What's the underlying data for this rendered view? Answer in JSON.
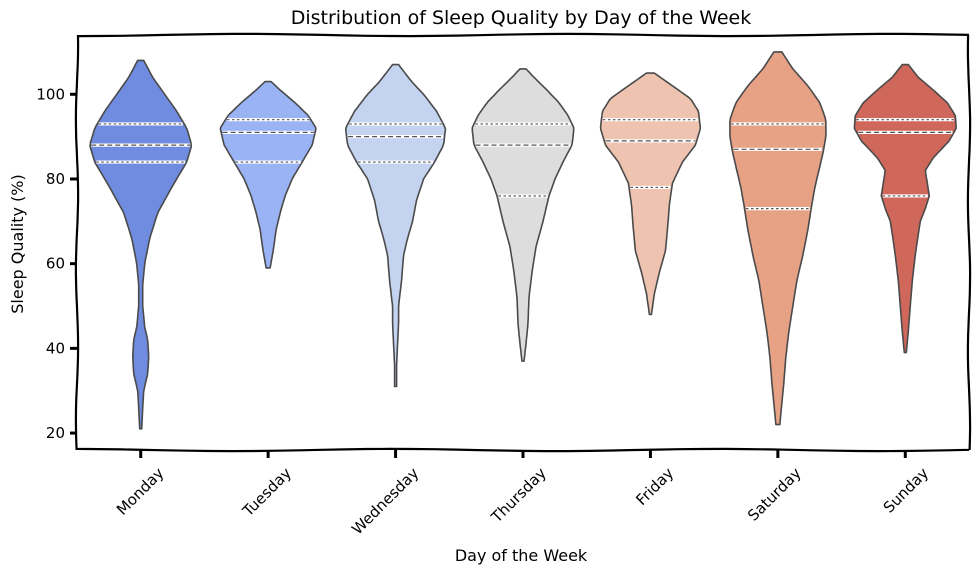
{
  "chart_data": {
    "type": "violin",
    "title": "Distribution of Sleep Quality by Day of the Week",
    "xlabel": "Day of the Week",
    "ylabel": "Sleep Quality (%)",
    "ylim": [
      16,
      114
    ],
    "yticks": [
      20,
      40,
      60,
      80,
      100
    ],
    "grid": false,
    "legend": "none",
    "categories": [
      "Monday",
      "Tuesday",
      "Wednesday",
      "Thursday",
      "Friday",
      "Saturday",
      "Sunday"
    ],
    "series": [
      {
        "name": "Monday",
        "color": "#6f8ce0",
        "min": 21,
        "max": 108,
        "quartiles": [
          84,
          88,
          93
        ],
        "profile": [
          [
            21,
            1
          ],
          [
            26,
            2
          ],
          [
            30,
            3
          ],
          [
            34,
            7
          ],
          [
            38,
            8
          ],
          [
            42,
            7
          ],
          [
            45,
            4
          ],
          [
            50,
            2
          ],
          [
            55,
            2
          ],
          [
            60,
            4
          ],
          [
            66,
            9
          ],
          [
            72,
            17
          ],
          [
            78,
            31
          ],
          [
            84,
            46
          ],
          [
            88,
            51
          ],
          [
            92,
            46
          ],
          [
            96,
            36
          ],
          [
            100,
            24
          ],
          [
            104,
            12
          ],
          [
            108,
            3
          ]
        ]
      },
      {
        "name": "Tuesday",
        "color": "#9ab3f5",
        "min": 59,
        "max": 103,
        "quartiles": [
          84,
          91,
          94
        ],
        "profile": [
          [
            59,
            2
          ],
          [
            63,
            5
          ],
          [
            68,
            8
          ],
          [
            72,
            12
          ],
          [
            76,
            17
          ],
          [
            80,
            24
          ],
          [
            84,
            34
          ],
          [
            88,
            44
          ],
          [
            92,
            48
          ],
          [
            95,
            40
          ],
          [
            98,
            27
          ],
          [
            101,
            12
          ],
          [
            103,
            3
          ]
        ]
      },
      {
        "name": "Wednesday",
        "color": "#c3d3f0",
        "min": 31,
        "max": 107,
        "quartiles": [
          84,
          90,
          93
        ],
        "profile": [
          [
            31,
            1
          ],
          [
            36,
            1
          ],
          [
            41,
            2
          ],
          [
            46,
            3
          ],
          [
            50,
            3
          ],
          [
            56,
            6
          ],
          [
            62,
            8
          ],
          [
            66,
            12
          ],
          [
            70,
            17
          ],
          [
            75,
            21
          ],
          [
            80,
            28
          ],
          [
            84,
            39
          ],
          [
            88,
            48
          ],
          [
            92,
            50
          ],
          [
            96,
            41
          ],
          [
            100,
            28
          ],
          [
            103,
            16
          ],
          [
            107,
            3
          ]
        ]
      },
      {
        "name": "Thursday",
        "color": "#dddddd",
        "min": 37,
        "max": 106,
        "quartiles": [
          76,
          88,
          93
        ],
        "profile": [
          [
            37,
            1
          ],
          [
            41,
            3
          ],
          [
            46,
            5
          ],
          [
            52,
            6
          ],
          [
            58,
            9
          ],
          [
            64,
            13
          ],
          [
            70,
            20
          ],
          [
            76,
            26
          ],
          [
            80,
            32
          ],
          [
            84,
            40
          ],
          [
            88,
            49
          ],
          [
            92,
            51
          ],
          [
            95,
            45
          ],
          [
            98,
            36
          ],
          [
            101,
            24
          ],
          [
            104,
            11
          ],
          [
            106,
            3
          ]
        ]
      },
      {
        "name": "Friday",
        "color": "#eec4b0",
        "min": 48,
        "max": 105,
        "quartiles": [
          78,
          89,
          94
        ],
        "profile": [
          [
            48,
            1
          ],
          [
            53,
            4
          ],
          [
            58,
            9
          ],
          [
            63,
            15
          ],
          [
            68,
            17
          ],
          [
            74,
            19
          ],
          [
            79,
            22
          ],
          [
            84,
            32
          ],
          [
            88,
            45
          ],
          [
            92,
            50
          ],
          [
            96,
            48
          ],
          [
            99,
            40
          ],
          [
            102,
            22
          ],
          [
            105,
            4
          ]
        ]
      },
      {
        "name": "Saturday",
        "color": "#e7a286",
        "min": 22,
        "max": 110,
        "quartiles": [
          73,
          87,
          93
        ],
        "profile": [
          [
            22,
            2
          ],
          [
            27,
            4
          ],
          [
            32,
            6
          ],
          [
            38,
            8
          ],
          [
            44,
            11
          ],
          [
            50,
            15
          ],
          [
            56,
            19
          ],
          [
            62,
            25
          ],
          [
            68,
            30
          ],
          [
            74,
            34
          ],
          [
            78,
            37
          ],
          [
            82,
            41
          ],
          [
            86,
            45
          ],
          [
            90,
            48
          ],
          [
            94,
            48
          ],
          [
            98,
            42
          ],
          [
            102,
            30
          ],
          [
            106,
            15
          ],
          [
            110,
            4
          ]
        ]
      },
      {
        "name": "Sunday",
        "color": "#d0675b",
        "min": 39,
        "max": 107,
        "quartiles": [
          76,
          91,
          94
        ],
        "profile": [
          [
            39,
            1
          ],
          [
            44,
            3
          ],
          [
            50,
            5
          ],
          [
            56,
            7
          ],
          [
            62,
            10
          ],
          [
            67,
            13
          ],
          [
            70,
            15
          ],
          [
            73,
            20
          ],
          [
            76,
            24
          ],
          [
            79,
            22
          ],
          [
            82,
            20
          ],
          [
            85,
            28
          ],
          [
            89,
            44
          ],
          [
            92,
            51
          ],
          [
            95,
            50
          ],
          [
            98,
            42
          ],
          [
            101,
            28
          ],
          [
            104,
            13
          ],
          [
            107,
            3
          ]
        ]
      }
    ]
  }
}
